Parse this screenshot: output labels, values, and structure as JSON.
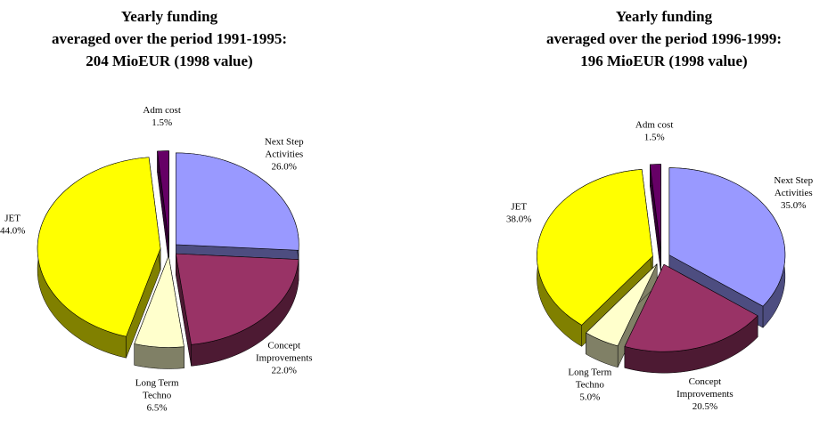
{
  "chart_data": [
    {
      "type": "pie3d",
      "title": "Yearly funding\naveraged over the period 1991-1995:\n204 MioEUR (1998 value)",
      "categories": [
        "Next Step\nActivities",
        "Concept\nImprovements",
        "Long Term\nTechno",
        "JET",
        "Adm cost"
      ],
      "values": [
        26,
        22,
        6.5,
        44,
        1.5
      ],
      "value_labels": [
        "26.0%",
        "22.0%",
        "6.5%",
        "44.0%",
        "1.5%"
      ],
      "colors": [
        "#9999ff",
        "#993366",
        "#ffffcc",
        "#ffff00",
        "#660066"
      ]
    },
    {
      "type": "pie3d",
      "title": "Yearly funding\naveraged over the period 1996-1999:\n196 MioEUR (1998 value)",
      "categories": [
        "Next Step\nActivities",
        "Concept\nImprovements",
        "Long Term\nTechno",
        "JET",
        "Adm cost"
      ],
      "values": [
        35,
        20.5,
        5,
        38,
        1.5
      ],
      "value_labels": [
        "35.0%",
        "20.5%",
        "5.0%",
        "38.0%",
        "1.5%"
      ],
      "colors": [
        "#9999ff",
        "#993366",
        "#ffffcc",
        "#ffff00",
        "#660066"
      ]
    }
  ]
}
